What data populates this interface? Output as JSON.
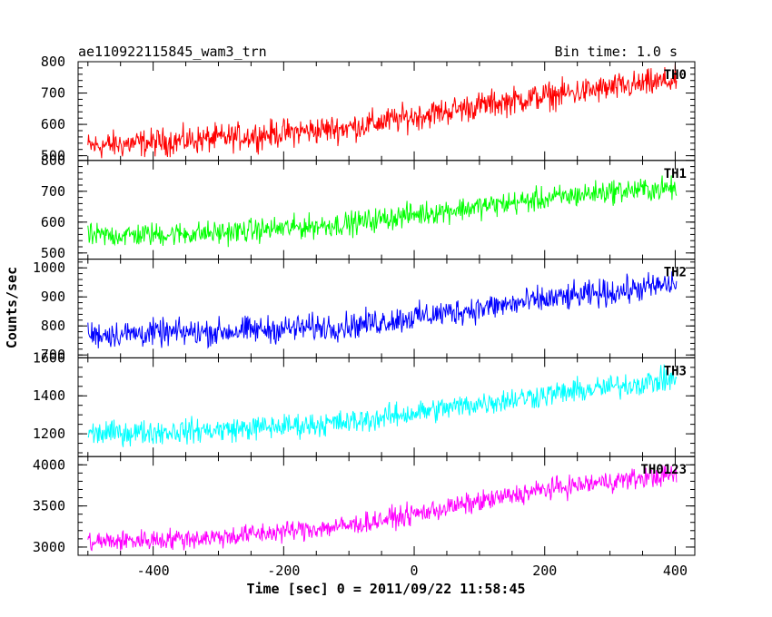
{
  "chart_data": {
    "type": "line",
    "title": "ae110922115845_wam3_trn",
    "bin_time_label": "Bin time: 1.0 s",
    "xlabel": "Time [sec] 0 = 2011/09/22 11:58:45",
    "ylabel": "Counts/sec",
    "xlim": [
      -515,
      430
    ],
    "xticks": [
      -400,
      -200,
      0,
      200,
      400
    ],
    "grid": false,
    "legend": "none",
    "panels": [
      {
        "name": "TH0",
        "color": "#ff0000",
        "ylim": [
          485,
          800
        ],
        "yticks": [
          500,
          600,
          700,
          800
        ],
        "trend": {
          "x": [
            -500,
            -300,
            -100,
            0,
            100,
            200,
            300,
            400
          ],
          "y": [
            530,
            555,
            590,
            625,
            660,
            690,
            715,
            740
          ]
        },
        "noise_amplitude": 38
      },
      {
        "name": "TH1",
        "color": "#00ff00",
        "ylim": [
          480,
          800
        ],
        "yticks": [
          500,
          600,
          700,
          800
        ],
        "trend": {
          "x": [
            -500,
            -300,
            -100,
            0,
            100,
            200,
            300,
            400
          ],
          "y": [
            555,
            565,
            595,
            625,
            650,
            675,
            700,
            710
          ]
        },
        "noise_amplitude": 33
      },
      {
        "name": "TH2",
        "color": "#0000ff",
        "ylim": [
          690,
          1030
        ],
        "yticks": [
          700,
          800,
          900,
          1000
        ],
        "trend": {
          "x": [
            -500,
            -300,
            -100,
            0,
            100,
            200,
            300,
            400
          ],
          "y": [
            770,
            780,
            800,
            830,
            860,
            890,
            915,
            945
          ]
        },
        "noise_amplitude": 40
      },
      {
        "name": "TH3",
        "color": "#00ffff",
        "ylim": [
          1080,
          1600
        ],
        "yticks": [
          1200,
          1400,
          1600
        ],
        "trend": {
          "x": [
            -500,
            -300,
            -100,
            0,
            100,
            200,
            300,
            400
          ],
          "y": [
            1200,
            1220,
            1260,
            1310,
            1360,
            1405,
            1445,
            1490
          ]
        },
        "noise_amplitude": 55
      },
      {
        "name": "TH0123",
        "color": "#ff00ff",
        "ylim": [
          2900,
          4100
        ],
        "yticks": [
          3000,
          3500,
          4000
        ],
        "trend": {
          "x": [
            -500,
            -300,
            -100,
            0,
            100,
            200,
            300,
            400
          ],
          "y": [
            3060,
            3120,
            3260,
            3400,
            3550,
            3700,
            3800,
            3880
          ]
        },
        "noise_amplitude": 110
      }
    ]
  }
}
